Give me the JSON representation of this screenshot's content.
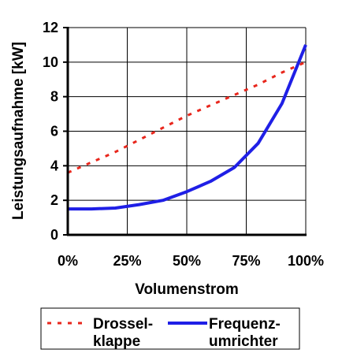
{
  "chart_data": {
    "type": "line",
    "title": "",
    "xlabel": "Volumenstrom",
    "ylabel": "Leistungsaufnahme [kW]",
    "xlim": [
      0,
      100
    ],
    "ylim": [
      0,
      12
    ],
    "x_ticks": [
      {
        "value": 0,
        "label": "0%"
      },
      {
        "value": 25,
        "label": "25%"
      },
      {
        "value": 50,
        "label": "50%"
      },
      {
        "value": 75,
        "label": "75%"
      },
      {
        "value": 100,
        "label": "100%"
      }
    ],
    "y_ticks": [
      {
        "value": 0,
        "label": "0"
      },
      {
        "value": 2,
        "label": "2"
      },
      {
        "value": 4,
        "label": "4"
      },
      {
        "value": 6,
        "label": "6"
      },
      {
        "value": 8,
        "label": "8"
      },
      {
        "value": 10,
        "label": "10"
      },
      {
        "value": 12,
        "label": "12"
      }
    ],
    "grid": true,
    "legend_position": "bottom",
    "series": [
      {
        "name": "Drossel- klappe",
        "legend_lines": [
          "Drossel-",
          "klappe"
        ],
        "color": "#e8261c",
        "style": "dashed",
        "x": [
          0,
          10,
          20,
          30,
          40,
          50,
          60,
          70,
          80,
          90,
          100
        ],
        "y": [
          3.6,
          4.2,
          4.8,
          5.5,
          6.2,
          6.9,
          7.5,
          8.1,
          8.7,
          9.4,
          10.0
        ]
      },
      {
        "name": "Frequenz- umrichter",
        "legend_lines": [
          "Frequenz-",
          "umrichter"
        ],
        "color": "#1f1fe6",
        "style": "solid",
        "x": [
          0,
          10,
          20,
          30,
          40,
          50,
          60,
          70,
          80,
          90,
          100
        ],
        "y": [
          1.5,
          1.5,
          1.55,
          1.75,
          2.0,
          2.5,
          3.1,
          3.9,
          5.3,
          7.6,
          11.0
        ]
      }
    ]
  }
}
